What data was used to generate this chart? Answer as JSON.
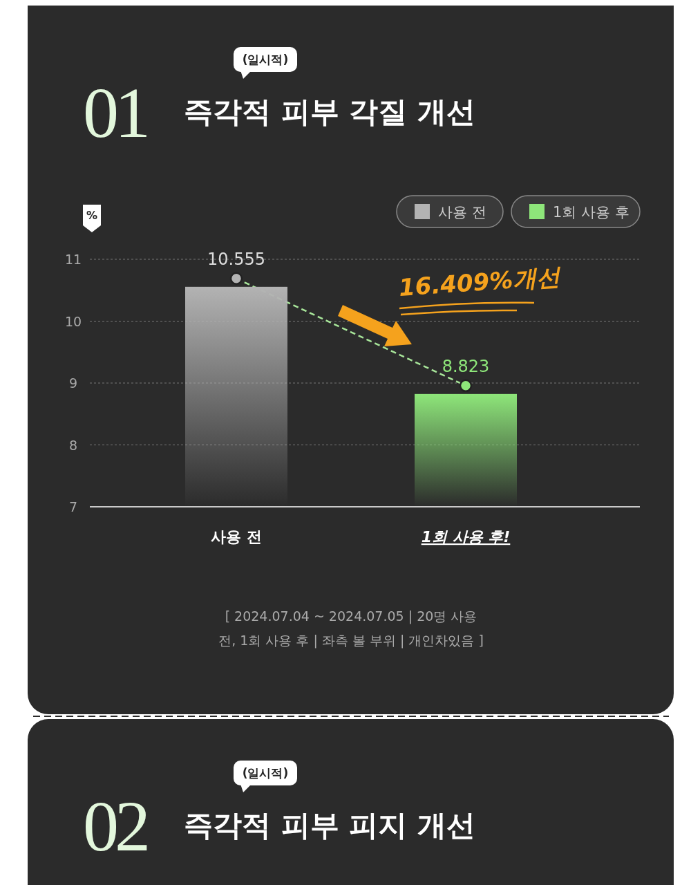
{
  "chart_data": [
    {
      "type": "bar",
      "title": "즉각적 피부 각질 개선",
      "subtitle": "(일시적)",
      "ylabel": "%",
      "categories": [
        "사용 전",
        "1회 사용 후!"
      ],
      "series": [
        {
          "name": "사용 전",
          "color": "#b3b3b3",
          "values": [
            10.555,
            null
          ]
        },
        {
          "name": "1회 사용 후",
          "color": "#8ee67a",
          "values": [
            null,
            8.823
          ]
        }
      ],
      "ylim": [
        7,
        11
      ],
      "yticks": [
        7,
        8,
        9,
        10,
        11
      ],
      "grid": "y",
      "legend": "top right",
      "data_labels": true,
      "annotations": [
        "01",
        "16.409%개선",
        "[ 2024.07.04 ~ 2024.07.05 | 20명 사용 전, 1회 사용 후 | 좌측 볼 부위 | 개인차있음 ]"
      ]
    },
    {
      "type": "other",
      "title": "즉각적 피부 피지 개선",
      "subtitle": "(일시적)",
      "annotations": [
        "02"
      ]
    }
  ]
}
